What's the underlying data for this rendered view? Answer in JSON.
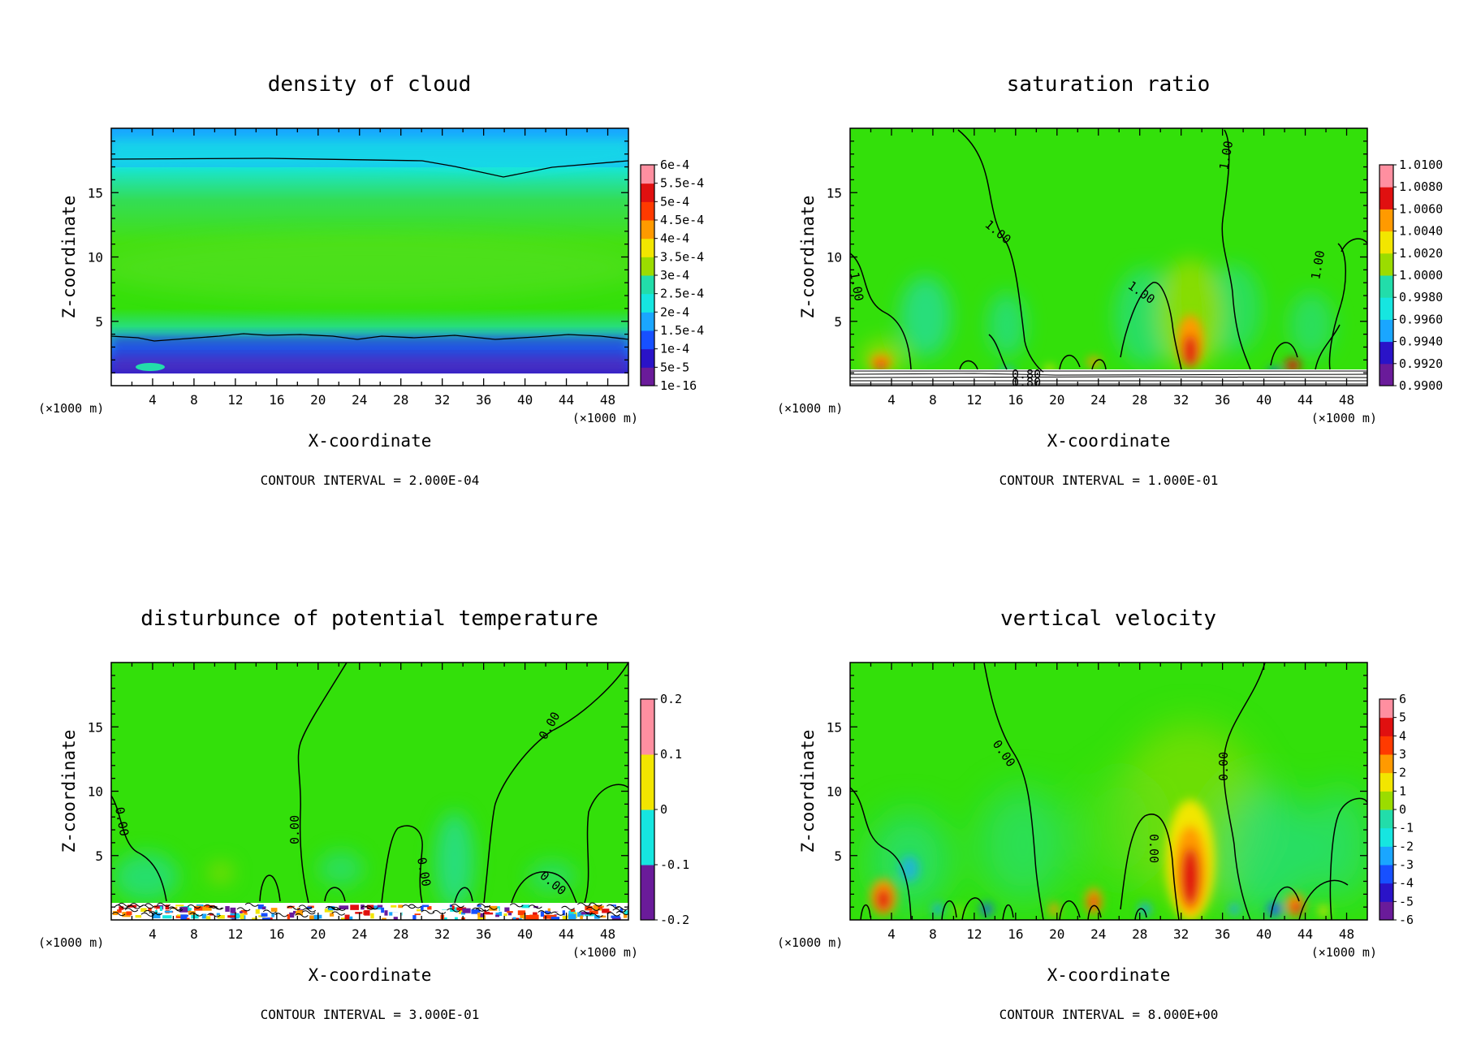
{
  "chart_data": [
    {
      "type": "heatmap",
      "title": "density of cloud",
      "xlabel": "X-coordinate",
      "ylabel": "Z-coordinate",
      "xunit_left": "(×1000 m)",
      "xunit_right": "(×1000 m)",
      "xlim": [
        0,
        50
      ],
      "ylim": [
        0,
        20
      ],
      "xticks": [
        4,
        8,
        12,
        16,
        20,
        24,
        28,
        32,
        36,
        40,
        44,
        48
      ],
      "yticks": [
        5,
        10,
        15
      ],
      "colorbar_labels": [
        "1e-16",
        "5e-5",
        "1e-4",
        "1.5e-4",
        "2e-4",
        "2.5e-4",
        "3e-4",
        "3.5e-4",
        "4e-4",
        "4.5e-4",
        "5e-4",
        "5.5e-4",
        "6e-4"
      ],
      "footer": "CONTOUR INTERVAL = 2.000E-04"
    },
    {
      "type": "heatmap",
      "title": "saturation ratio",
      "xlabel": "X-coordinate",
      "ylabel": "Z-coordinate",
      "xunit_left": "(×1000 m)",
      "xunit_right": "(×1000 m)",
      "xlim": [
        0,
        50
      ],
      "ylim": [
        0,
        20
      ],
      "xticks": [
        4,
        8,
        12,
        16,
        20,
        24,
        28,
        32,
        36,
        40,
        44,
        48
      ],
      "yticks": [
        5,
        10,
        15
      ],
      "colorbar_labels": [
        "0.9900",
        "0.9920",
        "0.9940",
        "0.9960",
        "0.9980",
        "1.0000",
        "1.0020",
        "1.0040",
        "1.0060",
        "1.0080",
        "1.0100"
      ],
      "contour_labels": [
        "1.00",
        "1.00",
        "1.00",
        "1.00",
        "1.00",
        "0.80",
        "0.80"
      ],
      "footer": "CONTOUR INTERVAL = 1.000E-01"
    },
    {
      "type": "heatmap",
      "title": "disturbunce of potential temperature",
      "xlabel": "X-coordinate",
      "ylabel": "Z-coordinate",
      "xunit_left": "(×1000 m)",
      "xunit_right": "(×1000 m)",
      "xlim": [
        0,
        50
      ],
      "ylim": [
        0,
        20
      ],
      "xticks": [
        4,
        8,
        12,
        16,
        20,
        24,
        28,
        32,
        36,
        40,
        44,
        48
      ],
      "yticks": [
        5,
        10,
        15
      ],
      "colorbar_labels": [
        "-0.2",
        "-0.1",
        "0",
        "0.1",
        "0.2"
      ],
      "contour_labels": [
        "0.00",
        "0.00",
        "0.00",
        "0.00",
        "0.00"
      ],
      "footer": "CONTOUR INTERVAL = 3.000E-01"
    },
    {
      "type": "heatmap",
      "title": "vertical velocity",
      "xlabel": "X-coordinate",
      "ylabel": "Z-coordinate",
      "xunit_left": "(×1000 m)",
      "xunit_right": "(×1000 m)",
      "xlim": [
        0,
        50
      ],
      "ylim": [
        0,
        20
      ],
      "xticks": [
        4,
        8,
        12,
        16,
        20,
        24,
        28,
        32,
        36,
        40,
        44,
        48
      ],
      "yticks": [
        5,
        10,
        15
      ],
      "colorbar_labels": [
        "-6",
        "-5",
        "-4",
        "-3",
        "-2",
        "-1",
        "0",
        "1",
        "2",
        "3",
        "4",
        "5",
        "6"
      ],
      "contour_labels": [
        "0.00",
        "0.00",
        "0.00"
      ],
      "footer": "CONTOUR INTERVAL = 8.000E+00"
    }
  ],
  "colors": {
    "field_base": "#33e00a",
    "colormap": [
      "#6a1b9a",
      "#2a13c8",
      "#1750ff",
      "#1aa6ff",
      "#16e6e0",
      "#22ddaa",
      "#33e00a",
      "#9bdc00",
      "#f2e600",
      "#ff9a00",
      "#ff3a00",
      "#e01010",
      "#ff8fa0"
    ]
  }
}
